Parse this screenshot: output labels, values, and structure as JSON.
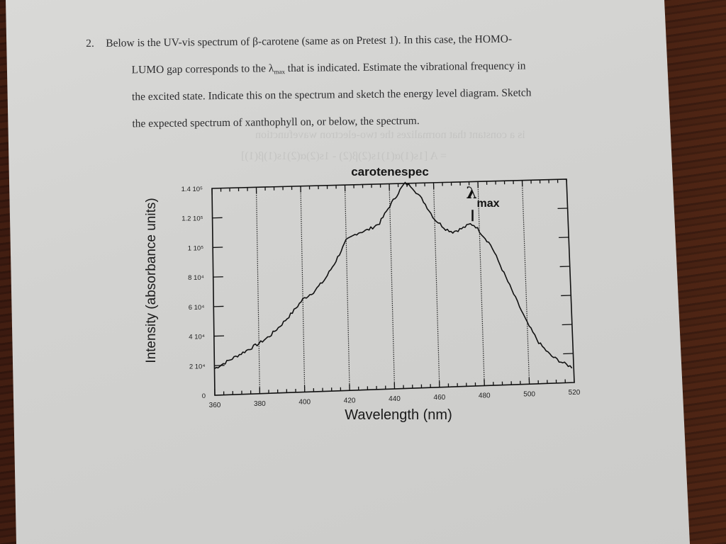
{
  "question": {
    "number": "2.",
    "lines": [
      "Below is the UV-vis spectrum of β-carotene (same as on Pretest 1).  In this case, the HOMO-",
      "LUMO gap corresponds to the λ",
      "that is indicated.  Estimate the vibrational frequency in",
      "the excited state.  Indicate this on the spectrum and sketch the energy level diagram.  Sketch",
      "the expected spectrum of xanthophyll on, or below, the spectrum."
    ],
    "lambda_subscript": "max"
  },
  "colors": {
    "paper": "#d3d3d1",
    "ink": "#1a1a1a",
    "wood": "#3f1c12"
  },
  "chart_data": {
    "type": "line",
    "title": "carotenespec",
    "xlabel": "Wavelength (nm)",
    "ylabel": "Intensity (absorbance units)",
    "xlim": [
      360,
      520
    ],
    "ylim": [
      0,
      140000
    ],
    "grid": "vertical dotted lines at major x ticks",
    "legend": "none",
    "x_ticks": [
      360,
      380,
      400,
      420,
      440,
      460,
      480,
      500,
      520
    ],
    "x_tick_labels": [
      "360",
      "380",
      "400",
      "420",
      "440",
      "460",
      "480",
      "500",
      "520"
    ],
    "y_ticks": [
      0,
      20000,
      40000,
      60000,
      80000,
      100000,
      120000,
      140000
    ],
    "y_tick_labels": [
      "0",
      "2 10⁴",
      "4 10⁴",
      "6 10⁴",
      "8 10⁴",
      "1 10⁵",
      "1.2 10⁵",
      "1.4 10⁵"
    ],
    "series": [
      {
        "name": "beta-carotene",
        "x": [
          360,
          365,
          370,
          375,
          380,
          385,
          390,
          395,
          400,
          405,
          410,
          415,
          420,
          425,
          430,
          435,
          440,
          445,
          447,
          450,
          455,
          460,
          465,
          468,
          472,
          476,
          478,
          480,
          485,
          490,
          495,
          500,
          505,
          510,
          515,
          520
        ],
        "y": [
          18000,
          22000,
          26000,
          30000,
          34000,
          39000,
          46000,
          54000,
          63000,
          68000,
          76000,
          88000,
          102000,
          107000,
          109000,
          113000,
          125000,
          136000,
          140000,
          138000,
          128000,
          115000,
          108000,
          106000,
          108000,
          111000,
          110000,
          106000,
          96000,
          78000,
          60000,
          42000,
          28000,
          19000,
          14000,
          10000
        ]
      }
    ],
    "annotations": [
      {
        "text": "λ",
        "subtext": "max",
        "x": 477,
        "note": "handwritten marker with vertical tick at the 477 nm shoulder"
      }
    ]
  }
}
